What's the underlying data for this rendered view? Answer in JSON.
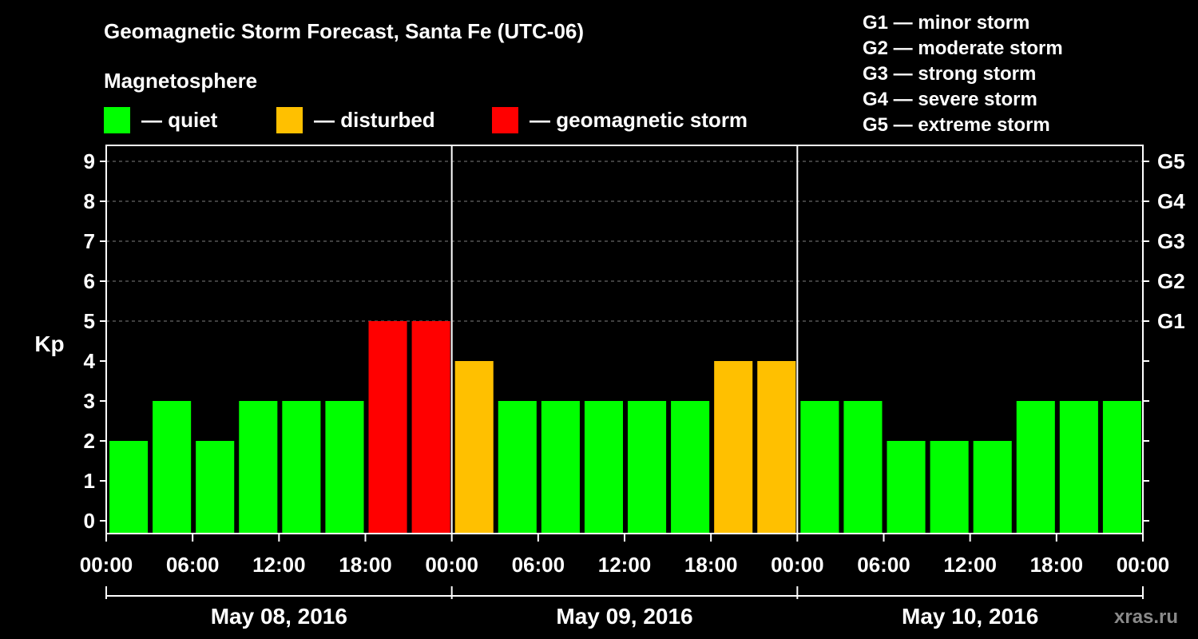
{
  "title": "Geomagnetic Storm Forecast, Santa Fe (UTC-06)",
  "legend": {
    "heading": "Magnetosphere",
    "items": [
      {
        "label": "— quiet",
        "color": "#00ff00"
      },
      {
        "label": "— disturbed",
        "color": "#ffc000"
      },
      {
        "label": "— geomagnetic storm",
        "color": "#ff0000"
      }
    ]
  },
  "g_scale": [
    "G1 — minor storm",
    "G2 — moderate storm",
    "G3 — strong storm",
    "G4 — severe storm",
    "G5 — extreme storm"
  ],
  "watermark": "xras.ru",
  "chart_data": {
    "type": "bar",
    "ylabel": "Kp",
    "ylim": [
      0,
      9
    ],
    "yticks": [
      "0",
      "1",
      "2",
      "3",
      "4",
      "5",
      "6",
      "7",
      "8",
      "9"
    ],
    "right_labels": [
      {
        "kp": 5,
        "label": "G1"
      },
      {
        "kp": 6,
        "label": "G2"
      },
      {
        "kp": 7,
        "label": "G3"
      },
      {
        "kp": 8,
        "label": "G4"
      },
      {
        "kp": 9,
        "label": "G5"
      }
    ],
    "xtick_labels": [
      "00:00",
      "06:00",
      "12:00",
      "18:00",
      "00:00",
      "06:00",
      "12:00",
      "18:00",
      "00:00",
      "06:00",
      "12:00",
      "18:00",
      "00:00"
    ],
    "days": [
      "May 08, 2016",
      "May 09, 2016",
      "May 10, 2016"
    ],
    "thresholds": {
      "disturbed": 4,
      "storm": 5
    },
    "colors": {
      "quiet": "#00ff00",
      "disturbed": "#ffc000",
      "storm": "#ff0000"
    },
    "values": [
      2,
      3,
      2,
      3,
      3,
      3,
      5,
      5,
      4,
      3,
      3,
      3,
      3,
      3,
      4,
      4,
      3,
      3,
      2,
      2,
      2,
      3,
      3,
      3
    ]
  }
}
